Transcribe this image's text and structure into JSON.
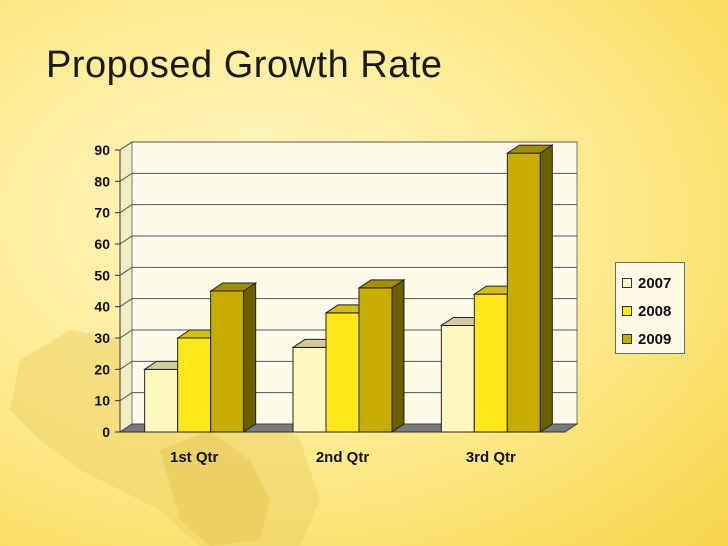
{
  "slide": {
    "title": "Proposed Growth Rate"
  },
  "colors": {
    "series_2007": "#fff8c0",
    "series_2008": "#ffe81a",
    "series_2009": "#c7ad00",
    "floor": "#7a7a7a",
    "wall": "#fffbea"
  },
  "chart_data": {
    "type": "bar",
    "categories": [
      "1st Qtr",
      "2nd Qtr",
      "3rd Qtr"
    ],
    "series": [
      {
        "name": "2007",
        "values": [
          20,
          27,
          34
        ]
      },
      {
        "name": "2008",
        "values": [
          30,
          38,
          44
        ]
      },
      {
        "name": "2009",
        "values": [
          45,
          46,
          89
        ]
      }
    ],
    "ylim": [
      0,
      90
    ],
    "yticks": [
      0,
      10,
      20,
      30,
      40,
      50,
      60,
      70,
      80,
      90
    ],
    "grid": true,
    "legend_position": "right",
    "style": "3d-clustered-column"
  }
}
